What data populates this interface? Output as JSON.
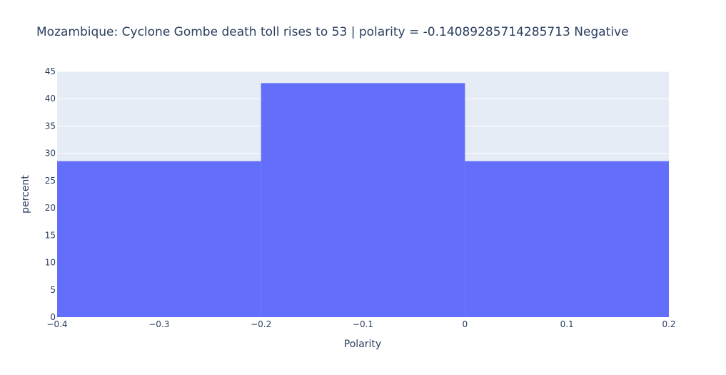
{
  "chart_data": {
    "type": "bar",
    "title": "Mozambique: Cyclone Gombe death toll rises to 53  | polarity = -0.14089285714285713 Negative",
    "xlabel": "Polarity",
    "ylabel": "percent",
    "bins": [
      {
        "start": -0.4,
        "end": -0.2,
        "value": 28.57
      },
      {
        "start": -0.2,
        "end": 0.0,
        "value": 42.86
      },
      {
        "start": 0.0,
        "end": 0.2,
        "value": 28.57
      }
    ],
    "xlim": [
      -0.4,
      0.2
    ],
    "ylim": [
      0,
      45
    ],
    "xticks": [
      -0.4,
      -0.3,
      -0.2,
      -0.1,
      0,
      0.1,
      0.2
    ],
    "xtick_labels": [
      "−0.4",
      "−0.3",
      "−0.2",
      "−0.1",
      "0",
      "0.1",
      "0.2"
    ],
    "yticks": [
      0,
      5,
      10,
      15,
      20,
      25,
      30,
      35,
      40,
      45
    ],
    "ytick_labels": [
      "0",
      "5",
      "10",
      "15",
      "20",
      "25",
      "30",
      "35",
      "40",
      "45"
    ],
    "grid": true,
    "colors": {
      "bar": "#636efa",
      "plot_bg": "#e5ecf6",
      "grid": "#ffffff",
      "text": "#2a3f5f"
    }
  }
}
